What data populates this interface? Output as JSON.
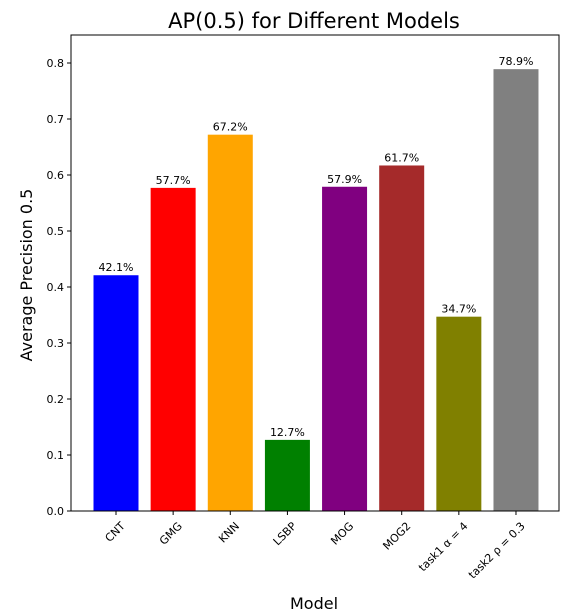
{
  "chart_data": {
    "type": "bar",
    "title": "AP(0.5) for Different Models",
    "xlabel": "Model",
    "ylabel": "Average Precision 0.5",
    "categories": [
      "CNT",
      "GMG",
      "KNN",
      "LSBP",
      "MOG",
      "MOG2",
      "task1 α = 4",
      "task2 ρ = 0.3"
    ],
    "values": [
      0.421,
      0.577,
      0.672,
      0.127,
      0.579,
      0.617,
      0.347,
      0.789
    ],
    "data_labels": [
      "42.1%",
      "57.7%",
      "67.2%",
      "12.7%",
      "57.9%",
      "61.7%",
      "34.7%",
      "78.9%"
    ],
    "colors": [
      "#0000ff",
      "#ff0000",
      "#ffa500",
      "#008000",
      "#800080",
      "#a52a2a",
      "#808000",
      "#808080"
    ],
    "ylim": [
      0,
      0.85
    ],
    "yticks": [
      "0.0",
      "0.1",
      "0.2",
      "0.3",
      "0.4",
      "0.5",
      "0.6",
      "0.7",
      "0.8"
    ],
    "grid": false,
    "legend": "none"
  }
}
